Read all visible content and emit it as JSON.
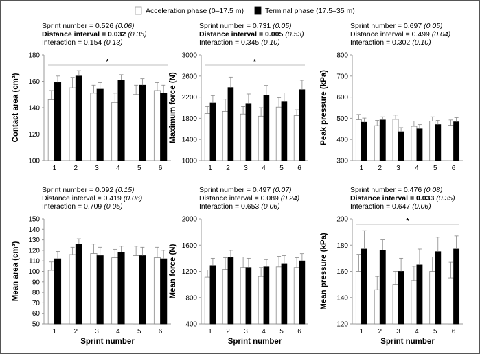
{
  "legend": {
    "acceleration": "Acceleration phase (0–17.5 m)",
    "terminal": "Terminal phase (17.5–35 m)"
  },
  "colors": {
    "acceleration": "#ffffff",
    "terminal": "#000000",
    "axis": "#999999",
    "stroke": "#888888"
  },
  "chart_data": [
    {
      "type": "bar",
      "categories": [
        "1",
        "2",
        "3",
        "4",
        "5",
        "6"
      ],
      "ylabel": "Contact area (cm²)",
      "xlabel": "",
      "ylim": [
        100,
        180
      ],
      "yticks": [
        100,
        120,
        140,
        160,
        180
      ],
      "significance": "*",
      "stats": [
        {
          "prefix": "Sprint number = ",
          "value": "0.526",
          "paren": "(0.06)",
          "bold": false
        },
        {
          "prefix": "Distance interval = ",
          "value": "0.032",
          "paren": "(0.35)",
          "bold": true
        },
        {
          "prefix": "Interaction = ",
          "value": "0.154",
          "paren": "(0.13)",
          "bold": false
        }
      ],
      "series": [
        {
          "name": "Acceleration phase (0–17.5 m)",
          "values": [
            146,
            155,
            151,
            144,
            150,
            153
          ],
          "errors": [
            7,
            8,
            6,
            7,
            7,
            6
          ]
        },
        {
          "name": "Terminal phase (17.5–35 m)",
          "values": [
            159,
            164,
            154,
            161,
            157,
            151
          ],
          "errors": [
            5,
            4,
            5,
            4,
            5,
            6
          ]
        }
      ]
    },
    {
      "type": "bar",
      "categories": [
        "1",
        "2",
        "3",
        "4",
        "5",
        "6"
      ],
      "ylabel": "Maximum force (N)",
      "xlabel": "",
      "ylim": [
        1000,
        3000
      ],
      "yticks": [
        1000,
        1400,
        1800,
        2200,
        2600,
        3000
      ],
      "significance": "*",
      "stats": [
        {
          "prefix": "Sprint number = ",
          "value": "0.731",
          "paren": "(0.05)",
          "bold": false
        },
        {
          "prefix": "Distance interval = ",
          "value": "0.005",
          "paren": "(0.53)",
          "bold": true
        },
        {
          "prefix": "Interaction = ",
          "value": "0.345",
          "paren": "(0.10)",
          "bold": false
        }
      ],
      "series": [
        {
          "name": "Acceleration phase (0–17.5 m)",
          "values": [
            1890,
            1930,
            1880,
            1840,
            2010,
            1850
          ],
          "errors": [
            130,
            230,
            140,
            160,
            180,
            110
          ]
        },
        {
          "name": "Terminal phase (17.5–35 m)",
          "values": [
            2090,
            2380,
            2080,
            2240,
            2120,
            2340
          ],
          "errors": [
            140,
            200,
            180,
            180,
            160,
            180
          ]
        }
      ]
    },
    {
      "type": "bar",
      "categories": [
        "1",
        "2",
        "3",
        "4",
        "5",
        "6"
      ],
      "ylabel": "Peak pressure (kPa)",
      "xlabel": "",
      "ylim": [
        300,
        800
      ],
      "yticks": [
        300,
        400,
        500,
        600,
        700,
        800
      ],
      "significance": "",
      "stats": [
        {
          "prefix": "Sprint number = ",
          "value": "0.697",
          "paren": "(0.05)",
          "bold": false
        },
        {
          "prefix": "Distance interval = ",
          "value": "0.499",
          "paren": "(0.04)",
          "bold": false
        },
        {
          "prefix": "Interaction = ",
          "value": "0.302",
          "paren": "(0.10)",
          "bold": false
        }
      ],
      "series": [
        {
          "name": "Acceleration phase (0–17.5 m)",
          "values": [
            493,
            465,
            495,
            462,
            487,
            467
          ],
          "errors": [
            25,
            25,
            20,
            25,
            20,
            25
          ]
        },
        {
          "name": "Terminal phase (17.5–35 m)",
          "values": [
            481,
            492,
            436,
            450,
            470,
            483
          ],
          "errors": [
            20,
            15,
            20,
            20,
            20,
            20
          ]
        }
      ]
    },
    {
      "type": "bar",
      "categories": [
        "1",
        "2",
        "3",
        "4",
        "5",
        "6"
      ],
      "ylabel": "Mean area (cm²)",
      "xlabel": "Sprint number",
      "ylim": [
        50,
        150
      ],
      "yticks": [
        50,
        60,
        70,
        80,
        90,
        100,
        110,
        120,
        130,
        140,
        150
      ],
      "significance": "",
      "stats": [
        {
          "prefix": "Sprint number = ",
          "value": "0.092",
          "paren": "(0.15)",
          "bold": false
        },
        {
          "prefix": "Distance interval = ",
          "value": "0.419",
          "paren": "(0.06)",
          "bold": false
        },
        {
          "prefix": "Interaction = ",
          "value": "0.709",
          "paren": "(0.05)",
          "bold": false
        }
      ],
      "series": [
        {
          "name": "Acceleration phase (0–17.5 m)",
          "values": [
            101,
            116,
            117,
            113,
            115,
            113
          ],
          "errors": [
            8,
            7,
            9,
            8,
            9,
            10
          ]
        },
        {
          "name": "Terminal phase (17.5–35 m)",
          "values": [
            112,
            126,
            115,
            118,
            115,
            112
          ],
          "errors": [
            7,
            5,
            8,
            6,
            8,
            8
          ]
        }
      ]
    },
    {
      "type": "bar",
      "categories": [
        "1",
        "2",
        "3",
        "4",
        "5",
        "6"
      ],
      "ylabel": "Mean force (N)",
      "xlabel": "Sprint number",
      "ylim": [
        400,
        2000
      ],
      "yticks": [
        400,
        800,
        1200,
        1600,
        2000
      ],
      "significance": "",
      "stats": [
        {
          "prefix": "Sprint number = ",
          "value": "0.497",
          "paren": "(0.07)",
          "bold": false
        },
        {
          "prefix": "Distance interval = ",
          "value": "0.089",
          "paren": "(0.24)",
          "bold": false
        },
        {
          "prefix": "Interaction = ",
          "value": "0.653",
          "paren": "(0.06)",
          "bold": false
        }
      ],
      "series": [
        {
          "name": "Acceleration phase (0–17.5 m)",
          "values": [
            1110,
            1230,
            1260,
            1120,
            1270,
            1260
          ],
          "errors": [
            110,
            180,
            160,
            140,
            160,
            150
          ]
        },
        {
          "name": "Terminal phase (17.5–35 m)",
          "values": [
            1290,
            1410,
            1260,
            1270,
            1310,
            1360
          ],
          "errors": [
            110,
            110,
            140,
            110,
            130,
            110
          ]
        }
      ]
    },
    {
      "type": "bar",
      "categories": [
        "1",
        "2",
        "3",
        "4",
        "5",
        "6"
      ],
      "ylabel": "Mean pressure (kPa)",
      "xlabel": "Sprint number",
      "ylim": [
        120,
        200
      ],
      "yticks": [
        120,
        140,
        160,
        180,
        200
      ],
      "significance": "*",
      "stats": [
        {
          "prefix": "Sprint number = ",
          "value": "0.476",
          "paren": "(0.08)",
          "bold": false
        },
        {
          "prefix": "Distance interval = ",
          "value": "0.033",
          "paren": "(0.35)",
          "bold": true
        },
        {
          "prefix": "Interaction = ",
          "value": "0.647",
          "paren": "(0.06)",
          "bold": false
        }
      ],
      "series": [
        {
          "name": "Acceleration phase (0–17.5 m)",
          "values": [
            160,
            146,
            150,
            153,
            160,
            155
          ],
          "errors": [
            13,
            10,
            10,
            11,
            11,
            12
          ]
        },
        {
          "name": "Terminal phase (17.5–35 m)",
          "values": [
            177,
            176,
            160,
            165,
            175,
            177
          ],
          "errors": [
            14,
            8,
            10,
            12,
            11,
            10
          ]
        }
      ]
    }
  ]
}
